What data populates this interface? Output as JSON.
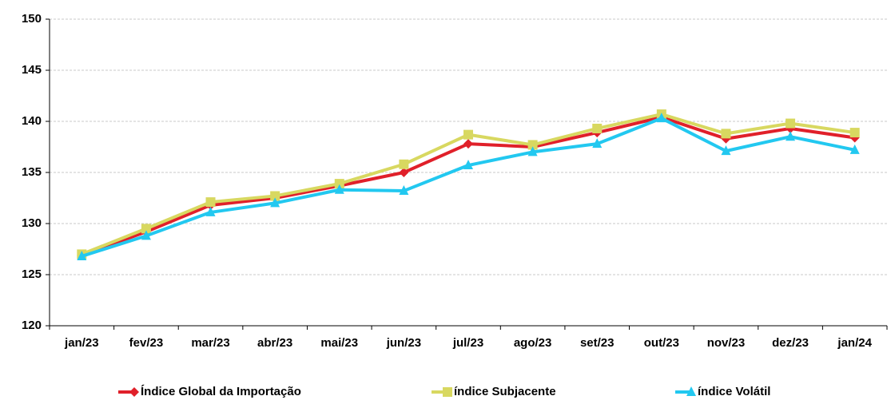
{
  "chart_data": {
    "type": "line",
    "categories": [
      "jan/23",
      "fev/23",
      "mar/23",
      "abr/23",
      "mai/23",
      "jun/23",
      "jul/23",
      "ago/23",
      "set/23",
      "out/23",
      "nov/23",
      "dez/23",
      "jan/24"
    ],
    "series": [
      {
        "name": "Índice Global da Importação",
        "color": "#e0202a",
        "marker": "diamond",
        "values": [
          126.9,
          129.2,
          131.8,
          132.5,
          133.7,
          135.0,
          137.8,
          137.5,
          138.9,
          140.4,
          138.3,
          139.3,
          138.4
        ]
      },
      {
        "name": "índice Subjacente",
        "color": "#d8d860",
        "marker": "square",
        "values": [
          127.0,
          129.5,
          132.1,
          132.7,
          133.9,
          135.8,
          138.7,
          137.7,
          139.3,
          140.7,
          138.8,
          139.8,
          138.9
        ]
      },
      {
        "name": "índice Volátil",
        "color": "#22c8f0",
        "marker": "triangle",
        "values": [
          126.8,
          128.8,
          131.1,
          132.0,
          133.3,
          133.2,
          135.7,
          137.0,
          137.8,
          140.3,
          137.1,
          138.5,
          137.2
        ]
      }
    ],
    "ylim": [
      120,
      150
    ],
    "yticks": [
      120,
      125,
      130,
      135,
      140,
      145,
      150
    ],
    "grid": true,
    "legend": "bottom"
  }
}
